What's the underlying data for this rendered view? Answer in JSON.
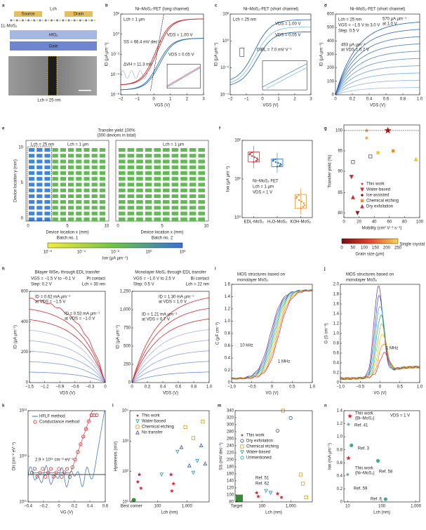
{
  "panels": [
    {
      "label": "a",
      "notes": [
        "Source",
        "Lch",
        "Drain",
        "1L-MoS₂",
        "HfO₂",
        "Gate",
        "Lch = 25 nm"
      ]
    },
    {
      "label": "b",
      "title": [
        "Ni–MoS₂-FET (long channel)"
      ],
      "notes": [
        "Lch = 1 μm",
        "SS = 66.4 mV dec⁻¹",
        "ΔVH = 11.3 mV",
        "VDS = 1.00 V",
        "VDS = 0.05 V"
      ],
      "xlabel": "VGS (V)",
      "ylabel": "ID (μA μm⁻¹)",
      "xticks": [
        "−2",
        "−1",
        "0",
        "1",
        "2",
        "3"
      ],
      "yticks": [
        "10⁻⁶",
        "10⁻⁴",
        "10⁻²",
        "10⁰",
        "10²"
      ]
    },
    {
      "label": "c",
      "title": [
        "Ni–MoS₂-FET (short channel)"
      ],
      "notes": [
        "Lch = 25 nm",
        "VDS = 1.00 V",
        "VDS = 0.05 V",
        "DIBL = 7.0 mV V⁻¹"
      ],
      "xlabel": "VGS (V)",
      "ylabel": "ID (μA μm⁻¹)",
      "xticks": [
        "−2",
        "−1",
        "0",
        "1",
        "2",
        "3"
      ],
      "yticks": [
        "10⁻⁴",
        "10⁻²",
        "10⁰",
        "10²"
      ]
    },
    {
      "label": "d",
      "title": [
        "Ni–MoS₂-FET (short channel)"
      ],
      "notes": [
        "Lch = 25 nm",
        "VGS = −1.5 V to 3.0 V",
        "Step: 0.5 V",
        "570 μA μm⁻¹",
        "at 1.0 V",
        "493 μA μm⁻¹",
        "at VDS = 0.7 V"
      ],
      "xlabel": "VDS (V)",
      "ylabel": "ID (μA μm⁻¹)",
      "xticks": [
        "0",
        "0.2",
        "0.4",
        "0.6",
        "0.8",
        "1.0"
      ],
      "yticks": [
        "0",
        "100",
        "200",
        "300",
        "400",
        "500",
        "600"
      ]
    },
    {
      "label": "e",
      "title": [
        "Transfer yield 100%",
        "(300 devices in total)"
      ],
      "notes": [
        "Lch = 25 nm",
        "Lch = 1 μm",
        "Lch = 1 μm",
        "Batch no. 1",
        "Batch no. 2"
      ],
      "xlabel": "Device location x (mm)",
      "ylabel": "Device location y (mm)",
      "xticks": [
        "0",
        "5",
        "10"
      ],
      "yticks": [
        "0",
        "5",
        "10"
      ],
      "colorbar": {
        "ticks": [
          "10⁻⁶",
          "10⁻⁴",
          "10⁻²",
          "10⁰",
          "10²"
        ],
        "label": "Ion (μA μm⁻¹)"
      }
    },
    {
      "label": "f",
      "notes": [
        "Ni–MoS₂ FET",
        "Lch = 1 μm",
        "VDS = 1 V"
      ],
      "ylabel": "Ion (μA μm⁻¹)",
      "xticks": [
        "EDL-MoS₂",
        "H₂O-MoS₂",
        "KOH-MoS₂"
      ],
      "yticks": [
        "10⁰",
        "10¹",
        "10²"
      ]
    },
    {
      "label": "g",
      "xlabel": "Mobility (cm² V⁻¹ s⁻¹)",
      "ylabel": "Transfer yield (%)",
      "xticks": [
        "0",
        "20",
        "40",
        "60",
        "80",
        "100"
      ],
      "yticks": [
        "80",
        "85",
        "90",
        "95",
        "100"
      ],
      "legend": [
        "This work",
        "Water-based",
        "Ice-assisted",
        "Chemical etching",
        "Dry exfoliation"
      ],
      "colorbar": {
        "ticks": [
          "0",
          "50",
          "100",
          "150",
          "200",
          "250"
        ],
        "label": "Grain size (μm)",
        "extra": "Single crystal"
      }
    },
    {
      "label": "h",
      "title": [
        "Bilayer WSe₂ through EDL transfer"
      ],
      "notes": [
        "VGS = −1.5 V to −0.1 V",
        "Step: 0.2 V",
        "Pt contact",
        "Lch = 30 nm",
        "ID = 0.62 mA μm⁻¹",
        "at VDS = −1.5 V",
        "ID = 0.52 mA μm⁻¹",
        "at VDS = −1.0 V"
      ],
      "xlabel": "VDS (V)",
      "ylabel": "ID (μA μm⁻¹)",
      "xticks": [
        "−1.5",
        "−1.2",
        "−0.9",
        "−0.6",
        "−0.3",
        "0"
      ],
      "yticks": [
        "0",
        "200",
        "400",
        "600"
      ]
    },
    {
      "title": [
        "Monolayer MoS₂ through EDL transfer"
      ],
      "notes": [
        "VGS = −1.0 V to 2.5 V",
        "Step: 0.5 V",
        "Bi contact",
        "Lch = 22 nm",
        "ID = 1.30 mA μm⁻¹",
        "at VDS = 1.0 V",
        "ID = 1.21 mA μm⁻¹",
        "at VDS = 0.7 V"
      ],
      "xlabel": "VDS (V)",
      "ylabel": "ID (μA μm⁻¹)",
      "xticks": [
        "0",
        "0.2",
        "0.4",
        "0.6",
        "0.8",
        "1.0"
      ],
      "yticks": [
        "0",
        "250",
        "500",
        "750",
        "1,000",
        "1,250"
      ]
    },
    {
      "label": "i",
      "title": [
        "MOS structures based on",
        "monolayer MoS₂"
      ],
      "notes": [
        "10 kHz",
        "1 MHz"
      ],
      "xlabel": "VG (V)",
      "ylabel": "C (μF cm⁻²)",
      "xticks": [
        "−1.0",
        "−0.5",
        "0",
        "0.5",
        "1.0"
      ],
      "yticks": [
        "0",
        "0.2",
        "0.4",
        "0.6",
        "0.8",
        "1.0",
        "1.2",
        "1.4",
        "1.6"
      ]
    },
    {
      "label": "j",
      "title": [
        "MOS structures based on",
        "monolayer MoS₂"
      ],
      "notes": [
        "1 MHz"
      ],
      "xlabel": "VG (V)",
      "ylabel": "G (S cm⁻²)",
      "xticks": [
        "−1.0",
        "−0.5",
        "0",
        "0.5",
        "1.0"
      ],
      "yticks": [
        "0",
        "0.2",
        "0.4",
        "0.6",
        "0.8",
        "1.0",
        "1.2",
        "1.4",
        "1.6",
        "1.8",
        "2.0"
      ]
    },
    {
      "label": "k",
      "notes": [
        "2.9 × 10¹¹ cm⁻² eV⁻¹"
      ],
      "legend": [
        "HFLF method",
        "Conductance method"
      ],
      "xlabel": "VG (V)",
      "ylabel": "Dit (cm⁻² eV⁻¹)",
      "xticks": [
        "−0.4",
        "−0.2",
        "0",
        "0.2",
        "0.4",
        "0.6"
      ],
      "yticks": [
        "10¹¹",
        "10¹²",
        "10¹³"
      ]
    },
    {
      "label": "l",
      "legend": [
        "This work",
        "Water-based",
        "Chemical etching",
        "No transfer"
      ],
      "xlabel": "Lch (nm)",
      "ylabel": "Hysteresis (mV)",
      "xticks": [
        "Best corner",
        "100",
        "1,000"
      ],
      "yticks": [
        "10¹",
        "10²",
        "10³",
        "10⁴"
      ]
    },
    {
      "label": "m",
      "legend": [
        "This work",
        "Dry exfoliation",
        "Chemical etching",
        "Water-based",
        "Unmentioned"
      ],
      "notes": [
        "Ref. 51",
        "Ref. 62"
      ],
      "xlabel": "Lch (nm)",
      "ylabel": "SS (mV dec⁻¹)",
      "xticks": [
        "Target",
        "100",
        "1,000"
      ],
      "yticks": [
        "80",
        "100",
        "120",
        "140",
        "160",
        "180",
        "200",
        "220",
        "240",
        "260",
        "280",
        "300",
        "320",
        "340"
      ]
    },
    {
      "label": "n",
      "notes": [
        "This work",
        "(Bi–MoS₂)",
        "Ref. 41",
        "Ref. 3",
        "This work",
        "(Ni–MoS₂)",
        "Ref. 58",
        "Ref. 59",
        "Ref. 6",
        "VDS = 1 V"
      ],
      "xlabel": "Lch (nm)",
      "ylabel": "Ion (mA μm⁻¹)",
      "xticks": [
        "10",
        "100",
        "1,000"
      ],
      "yticks": [
        "0",
        "0.2",
        "0.4",
        "0.6",
        "0.8",
        "1.0",
        "1.2",
        "1.4"
      ]
    }
  ]
}
